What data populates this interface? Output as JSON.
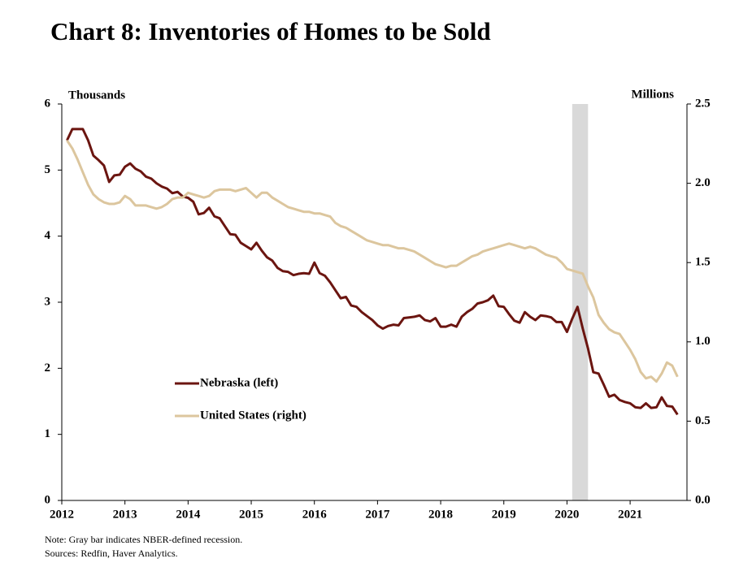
{
  "chart_data": {
    "type": "line",
    "title": "Chart 8: Inventories of Homes to be Sold",
    "y_label": "Thousands",
    "y2_label": "Millions",
    "note": "Note: Gray bar indicates NBER-defined recession.",
    "source": "Sources: Redfin, Haver Analytics.",
    "recession": [
      2020.083,
      2020.333
    ],
    "recession_color": "#d9d9d9",
    "x": [
      2012.083,
      2012.167,
      2012.25,
      2012.333,
      2012.417,
      2012.5,
      2012.583,
      2012.667,
      2012.75,
      2012.833,
      2012.917,
      2013,
      2013.083,
      2013.167,
      2013.25,
      2013.333,
      2013.417,
      2013.5,
      2013.583,
      2013.667,
      2013.75,
      2013.833,
      2013.917,
      2014,
      2014.083,
      2014.167,
      2014.25,
      2014.333,
      2014.417,
      2014.5,
      2014.583,
      2014.667,
      2014.75,
      2014.833,
      2014.917,
      2015,
      2015.083,
      2015.167,
      2015.25,
      2015.333,
      2015.417,
      2015.5,
      2015.583,
      2015.667,
      2015.75,
      2015.833,
      2015.917,
      2016,
      2016.083,
      2016.167,
      2016.25,
      2016.333,
      2016.417,
      2016.5,
      2016.583,
      2016.667,
      2016.75,
      2016.833,
      2016.917,
      2017,
      2017.083,
      2017.167,
      2017.25,
      2017.333,
      2017.417,
      2017.5,
      2017.583,
      2017.667,
      2017.75,
      2017.833,
      2017.917,
      2018,
      2018.083,
      2018.167,
      2018.25,
      2018.333,
      2018.417,
      2018.5,
      2018.583,
      2018.667,
      2018.75,
      2018.833,
      2018.917,
      2019,
      2019.083,
      2019.167,
      2019.25,
      2019.333,
      2019.417,
      2019.5,
      2019.583,
      2019.667,
      2019.75,
      2019.833,
      2019.917,
      2020,
      2020.083,
      2020.167,
      2020.25,
      2020.333,
      2020.417,
      2020.5,
      2020.583,
      2020.667,
      2020.75,
      2020.833,
      2020.917,
      2021,
      2021.083,
      2021.167,
      2021.25,
      2021.333,
      2021.417,
      2021.5,
      2021.583,
      2021.667,
      2021.75
    ],
    "series": [
      {
        "name": "Nebraska (left)",
        "color": "#6b1510",
        "axis": "y",
        "values": [
          5.45,
          5.62,
          5.62,
          5.62,
          5.45,
          5.22,
          5.15,
          5.07,
          4.82,
          4.92,
          4.93,
          5.05,
          5.1,
          5.02,
          4.98,
          4.9,
          4.87,
          4.8,
          4.75,
          4.72,
          4.65,
          4.67,
          4.6,
          4.58,
          4.52,
          4.33,
          4.35,
          4.43,
          4.3,
          4.27,
          4.15,
          4.03,
          4.02,
          3.9,
          3.85,
          3.8,
          3.9,
          3.78,
          3.68,
          3.63,
          3.52,
          3.47,
          3.46,
          3.41,
          3.43,
          3.44,
          3.43,
          3.6,
          3.44,
          3.4,
          3.3,
          3.18,
          3.06,
          3.08,
          2.95,
          2.93,
          2.85,
          2.79,
          2.73,
          2.65,
          2.6,
          2.64,
          2.66,
          2.65,
          2.76,
          2.77,
          2.78,
          2.8,
          2.73,
          2.71,
          2.76,
          2.63,
          2.63,
          2.66,
          2.63,
          2.78,
          2.85,
          2.9,
          2.98,
          3.0,
          3.03,
          3.1,
          2.94,
          2.93,
          2.82,
          2.72,
          2.69,
          2.85,
          2.78,
          2.73,
          2.8,
          2.79,
          2.77,
          2.7,
          2.7,
          2.55,
          2.75,
          2.93,
          2.6,
          2.3,
          1.94,
          1.92,
          1.75,
          1.57,
          1.6,
          1.52,
          1.49,
          1.47,
          1.41,
          1.4,
          1.47,
          1.4,
          1.41,
          1.56,
          1.43,
          1.42,
          1.3
        ]
      },
      {
        "name": "United States (right)",
        "color": "#dcc69e",
        "axis": "y2",
        "values": [
          2.27,
          2.22,
          2.15,
          2.07,
          1.99,
          1.93,
          1.9,
          1.88,
          1.87,
          1.87,
          1.88,
          1.92,
          1.9,
          1.86,
          1.86,
          1.86,
          1.85,
          1.84,
          1.85,
          1.87,
          1.9,
          1.91,
          1.91,
          1.94,
          1.93,
          1.92,
          1.91,
          1.92,
          1.95,
          1.96,
          1.96,
          1.96,
          1.95,
          1.96,
          1.97,
          1.94,
          1.91,
          1.94,
          1.94,
          1.91,
          1.89,
          1.87,
          1.85,
          1.84,
          1.83,
          1.82,
          1.82,
          1.81,
          1.81,
          1.8,
          1.79,
          1.75,
          1.73,
          1.72,
          1.7,
          1.68,
          1.66,
          1.64,
          1.63,
          1.62,
          1.61,
          1.61,
          1.6,
          1.59,
          1.59,
          1.58,
          1.57,
          1.55,
          1.53,
          1.51,
          1.49,
          1.48,
          1.47,
          1.48,
          1.48,
          1.5,
          1.52,
          1.54,
          1.55,
          1.57,
          1.58,
          1.59,
          1.6,
          1.61,
          1.62,
          1.61,
          1.6,
          1.59,
          1.6,
          1.59,
          1.57,
          1.55,
          1.54,
          1.53,
          1.5,
          1.46,
          1.45,
          1.44,
          1.43,
          1.35,
          1.28,
          1.17,
          1.12,
          1.08,
          1.06,
          1.05,
          1.0,
          0.95,
          0.89,
          0.81,
          0.77,
          0.78,
          0.75,
          0.8,
          0.87,
          0.85,
          0.78
        ]
      }
    ],
    "xlim": [
      2012,
      2021.9
    ],
    "xticks": [
      2012,
      2013,
      2014,
      2015,
      2016,
      2017,
      2018,
      2019,
      2020,
      2021
    ],
    "ylim": [
      0,
      6
    ],
    "yticks": [
      0,
      1,
      2,
      3,
      4,
      5,
      6
    ],
    "y2lim": [
      0,
      2.5
    ],
    "y2ticks": [
      {
        "value": 0,
        "label": "0.0"
      },
      0.5,
      {
        "value": 1,
        "label": "1.0"
      },
      1.5,
      {
        "value": 2,
        "label": "2.0"
      },
      2.5
    ],
    "legend": "lower left"
  }
}
